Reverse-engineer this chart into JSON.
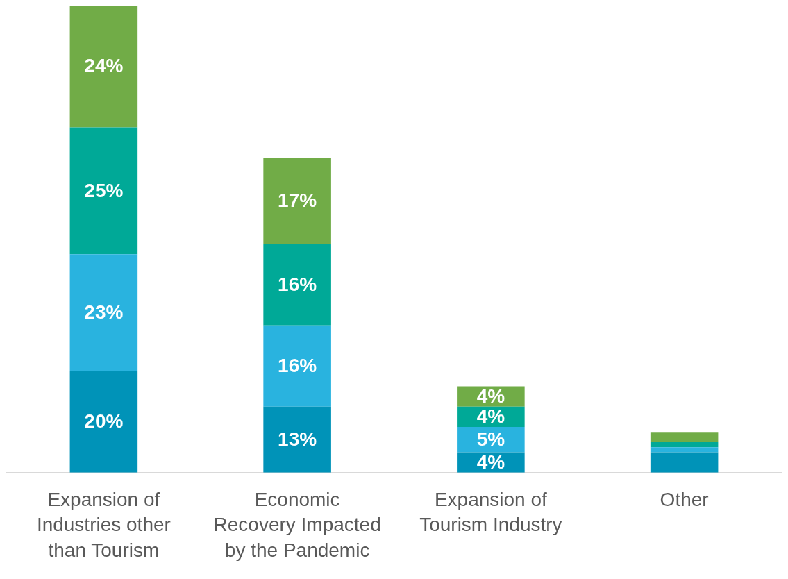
{
  "chart_data": {
    "type": "bar",
    "stacked": true,
    "categories": [
      "Expansion of Industries other than Tourism",
      "Economic Recovery Impacted by the Pandemic",
      "Expansion of Tourism Industry",
      "Other"
    ],
    "series": [
      {
        "color": "#0093b8",
        "values": [
          20,
          13,
          4,
          4
        ],
        "value_labels": [
          "20%",
          "13%",
          "4%",
          null
        ]
      },
      {
        "color": "#29b3df",
        "values": [
          23,
          16,
          5,
          1
        ],
        "value_labels": [
          "23%",
          "16%",
          "5%",
          null
        ]
      },
      {
        "color": "#00a997",
        "values": [
          25,
          16,
          4,
          1
        ],
        "value_labels": [
          "25%",
          "16%",
          "4%",
          null
        ]
      },
      {
        "color": "#71ac47",
        "values": [
          24,
          17,
          4,
          2
        ],
        "value_labels": [
          "24%",
          "17%",
          "4%",
          null
        ]
      }
    ]
  }
}
